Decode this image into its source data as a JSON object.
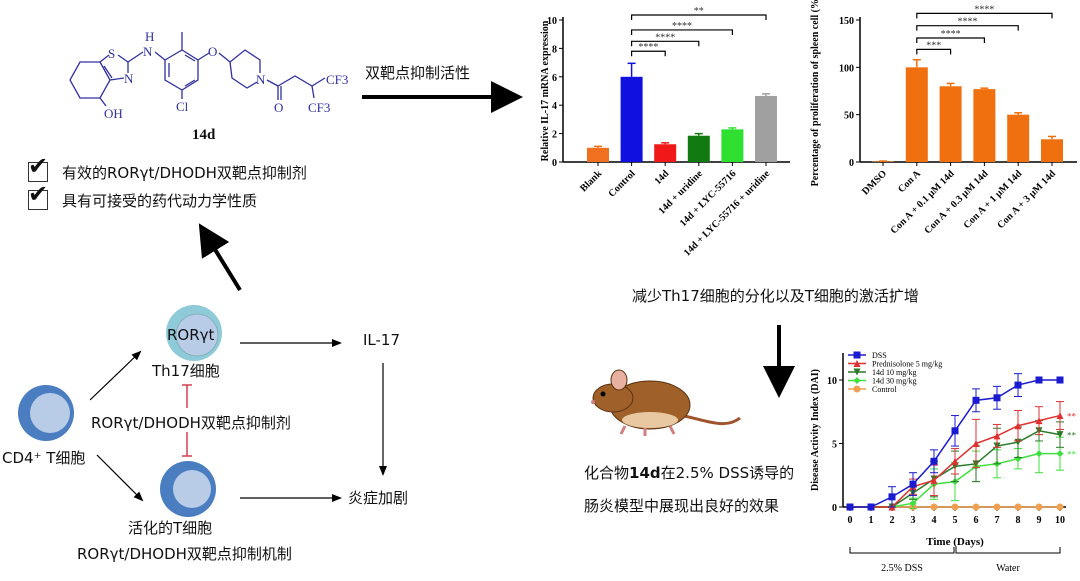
{
  "molecule": {
    "name": "14d",
    "atoms": [
      "S",
      "H",
      "N",
      "N",
      "OH",
      "Cl",
      "O",
      "N",
      "O",
      "CF3",
      "CF3"
    ],
    "color": "#3030a0"
  },
  "checklist": [
    {
      "text": "有效的RORγt/DHODH双靶点抑制剂",
      "checked": true
    },
    {
      "text": "具有可接受的药代动力学性质",
      "checked": true
    }
  ],
  "arrow_label_top": "双靶点抑制活性",
  "middle_caption": "减少Th17细胞的分化以及T细胞的激活扩增",
  "mouse_caption": {
    "line1_pre": "化合物",
    "line1_bold": "14d",
    "line1_post": "在2.5% DSS诱导的",
    "line2": "肠炎模型中展现出良好的效果"
  },
  "mechanism": {
    "cd4": "CD4⁺ T细胞",
    "rorgt": "RORγt",
    "th17": "Th17细胞",
    "inhibitor": "RORγt/DHODH双靶点抑制剂",
    "activated": "活化的T细胞",
    "title": "RORγt/DHODH双靶点抑制机制",
    "il17": "IL-17",
    "inflammation": "炎症加剧",
    "colors": {
      "cell_dark": "#4a7ec0",
      "cell_light": "#b8cce8",
      "th17_outer": "#8ecad8",
      "inhibit": "#d04050"
    }
  },
  "chart_data": [
    {
      "type": "bar",
      "ylabel": "Relative IL-17 mRNA expression",
      "ylim": [
        0,
        10
      ],
      "yticks": [
        0,
        2,
        4,
        6,
        8,
        10
      ],
      "categories": [
        "Blank",
        "Control",
        "14d",
        "14d + uridine",
        "14d + LYC-55716",
        "14d + LYC-55716 + uridine"
      ],
      "values": [
        1.0,
        6.0,
        1.25,
        1.85,
        2.3,
        4.65
      ],
      "errors": [
        0.1,
        0.95,
        0.1,
        0.15,
        0.1,
        0.15
      ],
      "colors": [
        "#f07020",
        "#1010e0",
        "#f01818",
        "#107a10",
        "#30e030",
        "#a0a0a0"
      ],
      "significance": [
        {
          "from": 1,
          "to": 2,
          "label": "****",
          "y": 7.8
        },
        {
          "from": 1,
          "to": 3,
          "label": "****",
          "y": 8.5
        },
        {
          "from": 1,
          "to": 4,
          "label": "****",
          "y": 9.3
        },
        {
          "from": 1,
          "to": 5,
          "label": "**",
          "y": 10.35
        }
      ]
    },
    {
      "type": "bar",
      "ylabel": "Percentage of proliferation of spleen cell (%)",
      "ylim": [
        0,
        150
      ],
      "yticks": [
        0,
        50,
        100,
        150
      ],
      "categories": [
        "DMSO",
        "Con A",
        "Con A + 0.1 μM 14d",
        "Con A + 0.3 μM 14d",
        "Con A + 1 μM 14d",
        "Con A + 3 μM 14d"
      ],
      "values": [
        0.5,
        100,
        80,
        77,
        50,
        24
      ],
      "errors": [
        0.5,
        8,
        3,
        1,
        2,
        3
      ],
      "colors": [
        "#f07010",
        "#f07010",
        "#f07010",
        "#f07010",
        "#f07010",
        "#f07010"
      ],
      "significance": [
        {
          "from": 1,
          "to": 2,
          "label": "***",
          "y": 119
        },
        {
          "from": 1,
          "to": 3,
          "label": "****",
          "y": 131
        },
        {
          "from": 1,
          "to": 4,
          "label": "****",
          "y": 144
        },
        {
          "from": 1,
          "to": 5,
          "label": "****",
          "y": 157
        }
      ]
    },
    {
      "type": "line",
      "xlabel": "Time (Days)",
      "ylabel": "Disease Activity Index (DAI)",
      "xlim": [
        0,
        10
      ],
      "ylim": [
        0,
        12
      ],
      "xticks": [
        0,
        1,
        2,
        3,
        4,
        5,
        6,
        7,
        8,
        9,
        10
      ],
      "yticks": [
        0,
        5,
        10
      ],
      "legend": "top-left",
      "x": [
        0,
        1,
        2,
        3,
        4,
        5,
        6,
        7,
        8,
        9,
        10
      ],
      "series": [
        {
          "name": "DSS",
          "color": "#1a1ad0",
          "marker": "square",
          "values": [
            0,
            0,
            0.8,
            1.8,
            3.6,
            6,
            8.4,
            8.6,
            9.6,
            10,
            10
          ],
          "errors": [
            0,
            0,
            0.8,
            0.9,
            0.9,
            1.2,
            0.9,
            0.9,
            0.9,
            0,
            0
          ]
        },
        {
          "name": "Prednisolone 5 mg/kg",
          "color": "#e03030",
          "marker": "triangle",
          "values": [
            0,
            0,
            0,
            1.6,
            2.1,
            3.6,
            5,
            5.6,
            6.4,
            6.8,
            7.2
          ],
          "errors": [
            0,
            0,
            0,
            0.6,
            1.2,
            1.0,
            1.9,
            0.9,
            1.2,
            1.1,
            1.1
          ],
          "annotation": "**"
        },
        {
          "name": "14d 10 mg/kg",
          "color": "#2a7a2a",
          "marker": "triangle-down",
          "values": [
            0,
            0,
            0,
            1.1,
            2.2,
            3.2,
            3.4,
            4.8,
            5.1,
            6,
            5.7
          ],
          "errors": [
            0,
            0,
            0,
            0.5,
            1.4,
            1.2,
            1.4,
            1.4,
            1.2,
            0.8,
            1.0
          ],
          "annotation": "**"
        },
        {
          "name": "14d 30 mg/kg",
          "color": "#3ee03e",
          "marker": "diamond",
          "values": [
            0,
            0,
            0,
            0.3,
            1.8,
            2,
            3.2,
            3.4,
            3.8,
            4.2,
            4.2
          ],
          "errors": [
            0,
            0,
            0,
            0.4,
            1.2,
            1.5,
            1.2,
            1.1,
            0.8,
            1.5,
            1.3
          ],
          "annotation": "**"
        },
        {
          "name": "Control",
          "color": "#f0a050",
          "marker": "circle",
          "values": [
            0,
            0,
            0,
            0,
            0,
            0,
            0,
            0,
            0,
            0,
            0
          ],
          "errors": [
            0,
            0,
            0,
            0,
            0,
            0,
            0,
            0,
            0,
            0,
            0
          ]
        }
      ],
      "phases": [
        {
          "label": "2.5% DSS",
          "from": 0,
          "to": 5
        },
        {
          "label": "Water",
          "from": 5,
          "to": 10
        }
      ]
    }
  ]
}
